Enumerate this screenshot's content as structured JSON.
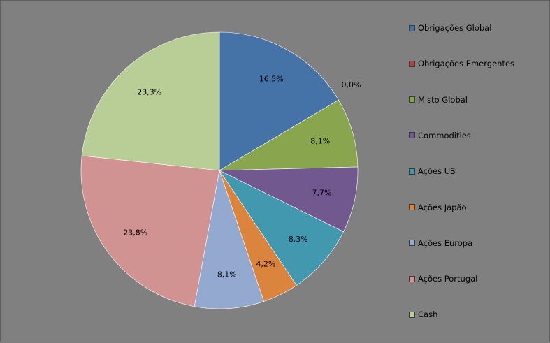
{
  "chart_data": {
    "type": "pie",
    "title": "",
    "legend_position": "right",
    "start": "top",
    "direction": "clockwise",
    "slices": [
      {
        "name": "Obrigações Global",
        "value": 16.5,
        "label": "16,5%",
        "color": "#4572A7"
      },
      {
        "name": "Obrigações Emergentes",
        "value": 0.0,
        "label": "0,0%",
        "color": "#AA4643"
      },
      {
        "name": "Misto Global",
        "value": 8.1,
        "label": "8,1%",
        "color": "#89A54E"
      },
      {
        "name": "Commodities",
        "value": 7.7,
        "label": "7,7%",
        "color": "#71588F"
      },
      {
        "name": "Ações US",
        "value": 8.3,
        "label": "8,3%",
        "color": "#4198AF"
      },
      {
        "name": "Ações Japão",
        "value": 4.2,
        "label": "4,2%",
        "color": "#DB843D"
      },
      {
        "name": "Ações Europa",
        "value": 8.1,
        "label": "8,1%",
        "color": "#93A9CF"
      },
      {
        "name": "Ações Portugal",
        "value": 23.8,
        "label": "23,8%",
        "color": "#D19392"
      },
      {
        "name": "Cash",
        "value": 23.3,
        "label": "23,3%",
        "color": "#B9CD96"
      }
    ]
  }
}
